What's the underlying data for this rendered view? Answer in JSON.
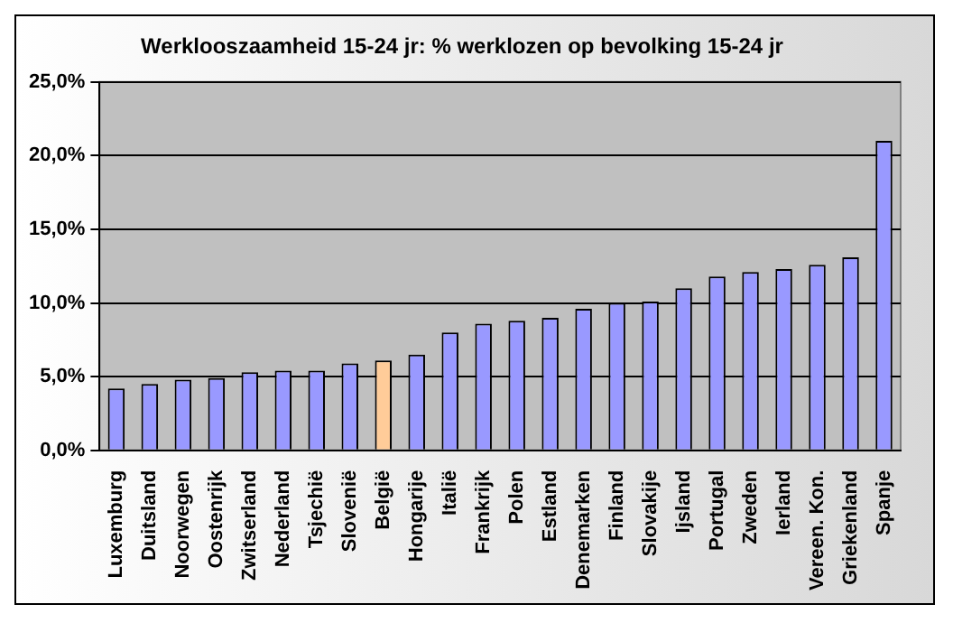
{
  "chart_data": {
    "type": "bar",
    "title": "Werklooszaamheid 15-24 jr: % werklozen op bevolking 15-24 jr",
    "categories": [
      "Luxemburg",
      "Duitsland",
      "Noorwegen",
      "Oostenrijk",
      "Zwitserland",
      "Nederland",
      "Tsjechië",
      "Slovenië",
      "België",
      "Hongarije",
      "Italië",
      "Frankrijk",
      "Polen",
      "Estland",
      "Denemarken",
      "Finland",
      "Slovakije",
      "Ijsland",
      "Portugal",
      "Zweden",
      "Ierland",
      "Vereen. Kon.",
      "Griekenland",
      "Spanje"
    ],
    "values": [
      4.2,
      4.5,
      4.8,
      4.9,
      5.3,
      5.4,
      5.4,
      5.9,
      6.1,
      6.5,
      8.0,
      8.6,
      8.8,
      9.0,
      9.6,
      10.0,
      10.1,
      11.0,
      11.8,
      12.1,
      12.3,
      12.6,
      13.1,
      21.0
    ],
    "colors": [
      "#9999ff",
      "#9999ff",
      "#9999ff",
      "#9999ff",
      "#9999ff",
      "#9999ff",
      "#9999ff",
      "#9999ff",
      "#ffcc99",
      "#9999ff",
      "#9999ff",
      "#9999ff",
      "#9999ff",
      "#9999ff",
      "#9999ff",
      "#9999ff",
      "#9999ff",
      "#9999ff",
      "#9999ff",
      "#9999ff",
      "#9999ff",
      "#9999ff",
      "#9999ff",
      "#9999ff"
    ],
    "ylim": [
      0,
      25
    ],
    "yticks": [
      {
        "value": 0,
        "label": "0,0%"
      },
      {
        "value": 5,
        "label": "5,0%"
      },
      {
        "value": 10,
        "label": "10,0%"
      },
      {
        "value": 15,
        "label": "15,0%"
      },
      {
        "value": 20,
        "label": "20,0%"
      },
      {
        "value": 25,
        "label": "25,0%"
      }
    ],
    "grid": "y",
    "legend": false
  }
}
